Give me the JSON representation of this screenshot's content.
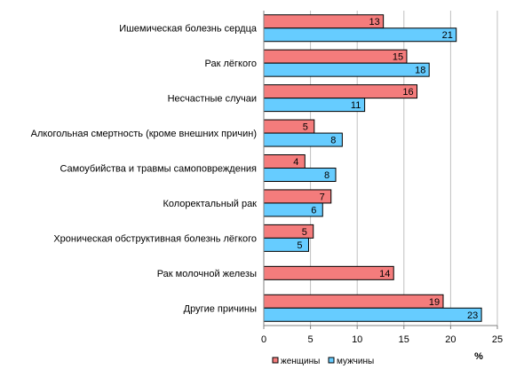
{
  "chart_data": {
    "type": "bar",
    "orientation": "horizontal",
    "categories": [
      "Ишемическая болезнь сердца",
      "Рак лёгкого",
      "Несчастные случаи",
      "Алкогольная смертность (кроме внешних причин)",
      "Самоубийства и травмы самоповреждения",
      "Колоректальный рак",
      "Хроническая обструктивная болезнь лёгкого",
      "Рак молочной железы",
      "Другие причины"
    ],
    "series": [
      {
        "name": "женщины",
        "color": "#f47c7c",
        "values": [
          13,
          15,
          16,
          5,
          4,
          7,
          5,
          14,
          19
        ],
        "bar_values": [
          12.8,
          15.3,
          16.4,
          5.4,
          4.4,
          7.2,
          5.3,
          13.9,
          19.2
        ]
      },
      {
        "name": "мужчины",
        "color": "#66ccff",
        "values": [
          21,
          18,
          11,
          8,
          8,
          6,
          5,
          null,
          23
        ],
        "bar_values": [
          20.6,
          17.7,
          10.8,
          8.4,
          7.7,
          6.3,
          4.8,
          null,
          23.3
        ]
      }
    ],
    "xlim": [
      0,
      25
    ],
    "xticks": [
      "0",
      "5",
      "10",
      "15",
      "20",
      "25"
    ],
    "xlabel": "%",
    "grid": true,
    "legend_position": "bottom"
  }
}
